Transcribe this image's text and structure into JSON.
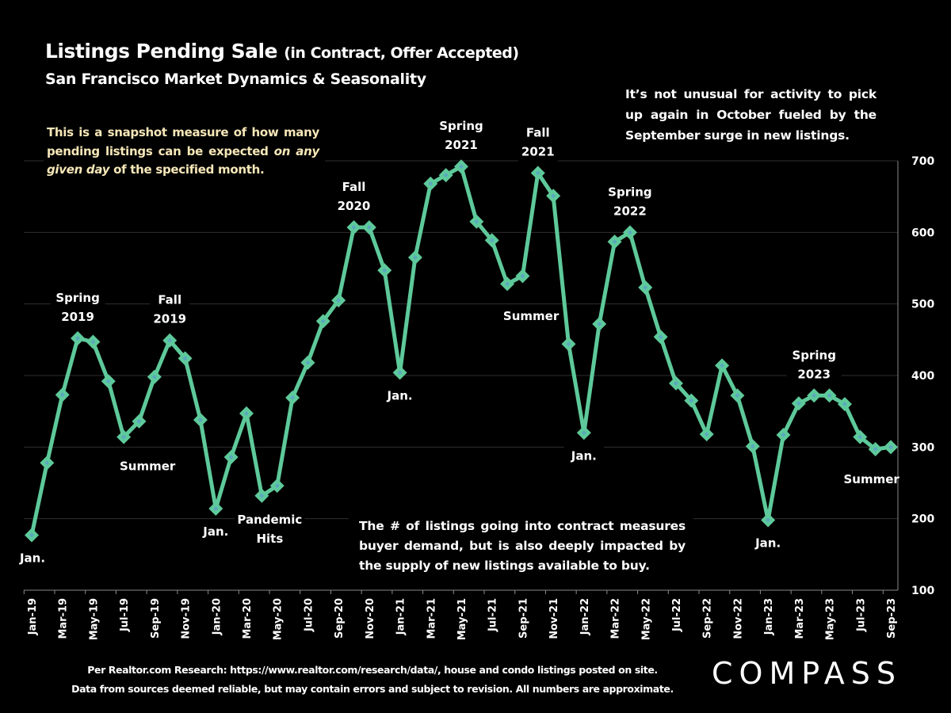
{
  "header": {
    "title_main": "Listings Pending Sale",
    "title_paren": "(in Contract, Offer Accepted)",
    "subtitle": "San Francisco Market Dynamics & Seasonality"
  },
  "notes": {
    "left_part1": "This is a snapshot measure of how many pending listings can be expected ",
    "left_italic": "on any given day",
    "left_part2": " of the specified month.",
    "right": "It’s not unusual for activity to pick up again in October fueled by the September surge in new listings.",
    "bottom": "The # of listings going into contract measures buyer demand, but is also deeply impacted by the supply of new listings available to buy."
  },
  "footer": {
    "line1": "Per Realtor.com Research:  https://www.realtor.com/research/data/, house and condo listings posted on site.",
    "line2": "Data from sources deemed reliable, but may contain errors and subject to revision. All numbers are approximate."
  },
  "logo": {
    "text": "COMPASS"
  },
  "chart_data": {
    "type": "line",
    "title": "Listings Pending Sale (in Contract, Offer Accepted)",
    "subtitle": "San Francisco Market Dynamics & Seasonality",
    "xlabel": "",
    "ylabel": "",
    "ylim": [
      100,
      700
    ],
    "yticks": [
      100,
      200,
      300,
      400,
      500,
      600,
      700
    ],
    "y_axis_side": "right",
    "grid": true,
    "legend": "none",
    "colors": {
      "line": "#5ec99a",
      "marker_center": "#5aa8c0",
      "grid": "#2e2e2e",
      "axis": "#8a8a8a"
    },
    "x": [
      "Jan-19",
      "Feb-19",
      "Mar-19",
      "Apr-19",
      "May-19",
      "Jun-19",
      "Jul-19",
      "Aug-19",
      "Sep-19",
      "Oct-19",
      "Nov-19",
      "Dec-19",
      "Jan-20",
      "Feb-20",
      "Mar-20",
      "Apr-20",
      "May-20",
      "Jun-20",
      "Jul-20",
      "Aug-20",
      "Sep-20",
      "Oct-20",
      "Nov-20",
      "Dec-20",
      "Jan-21",
      "Feb-21",
      "Mar-21",
      "Apr-21",
      "May-21",
      "Jun-21",
      "Jul-21",
      "Aug-21",
      "Sep-21",
      "Oct-21",
      "Nov-21",
      "Dec-21",
      "Jan-22",
      "Feb-22",
      "Mar-22",
      "Apr-22",
      "May-22",
      "Jun-22",
      "Jul-22",
      "Aug-22",
      "Sep-22",
      "Oct-22",
      "Nov-22",
      "Dec-22",
      "Jan-23",
      "Feb-23",
      "Mar-23",
      "Apr-23",
      "May-23",
      "Jun-23",
      "Jul-23",
      "Aug-23",
      "Sep-23"
    ],
    "xtick_labels": [
      "Jan-19",
      "Mar-19",
      "May-19",
      "Jul-19",
      "Sep-19",
      "Nov-19",
      "Jan-20",
      "Mar-20",
      "May-20",
      "Jul-20",
      "Sep-20",
      "Nov-20",
      "Jan-21",
      "Mar-21",
      "May-21",
      "Jul-21",
      "Sep-21",
      "Nov-21",
      "Jan-22",
      "Mar-22",
      "May-22",
      "Jul-22",
      "Sep-22",
      "Nov-22",
      "Jan-23",
      "Mar-23",
      "May-23",
      "Jul-23",
      "Sep-23"
    ],
    "series": [
      {
        "name": "Listings Pending Sale",
        "values": [
          177,
          278,
          373,
          452,
          447,
          392,
          314,
          336,
          398,
          449,
          424,
          338,
          214,
          286,
          347,
          232,
          246,
          369,
          418,
          476,
          505,
          607,
          607,
          547,
          404,
          565,
          668,
          680,
          692,
          615,
          589,
          528,
          539,
          683,
          651,
          444,
          320,
          472,
          587,
          600,
          523,
          454,
          389,
          365,
          318,
          414,
          372,
          301,
          198,
          317,
          361,
          372,
          372,
          360,
          314,
          297,
          300
        ]
      }
    ],
    "annotations": [
      {
        "index": 0,
        "lines": [
          "Jan."
        ],
        "position": "below"
      },
      {
        "index": 3,
        "lines": [
          "Spring",
          "2019"
        ],
        "position": "above"
      },
      {
        "index": 6,
        "lines": [
          "Summer"
        ],
        "position": "below"
      },
      {
        "index": 9,
        "lines": [
          "Fall",
          "2019"
        ],
        "position": "above"
      },
      {
        "index": 12,
        "lines": [
          "Jan."
        ],
        "position": "below"
      },
      {
        "index": 15,
        "lines": [
          "Pandemic",
          "Hits"
        ],
        "position": "below"
      },
      {
        "index": 21,
        "lines": [
          "Fall",
          "2020"
        ],
        "position": "above"
      },
      {
        "index": 24,
        "lines": [
          "Jan."
        ],
        "position": "below"
      },
      {
        "index": 28,
        "lines": [
          "Spring",
          "2021"
        ],
        "position": "above"
      },
      {
        "index": 31,
        "lines": [
          "Summer"
        ],
        "position": "below"
      },
      {
        "index": 33,
        "lines": [
          "Fall",
          "2021"
        ],
        "position": "above"
      },
      {
        "index": 36,
        "lines": [
          "Jan."
        ],
        "position": "below"
      },
      {
        "index": 39,
        "lines": [
          "Spring",
          "2022"
        ],
        "position": "above"
      },
      {
        "index": 48,
        "lines": [
          "Jan."
        ],
        "position": "below"
      },
      {
        "index": 51,
        "lines": [
          "Spring",
          "2023"
        ],
        "position": "above"
      },
      {
        "index": 55,
        "lines": [
          "Summer"
        ],
        "position": "below"
      }
    ]
  }
}
